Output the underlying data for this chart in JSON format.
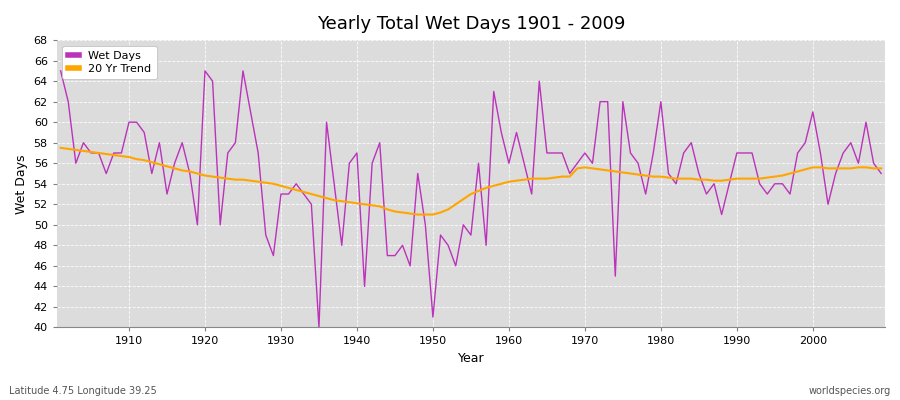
{
  "title": "Yearly Total Wet Days 1901 - 2009",
  "xlabel": "Year",
  "ylabel": "Wet Days",
  "lat_lon_label": "Latitude 4.75 Longitude 39.25",
  "watermark": "worldspecies.org",
  "ylim": [
    40,
    68
  ],
  "xlim": [
    1901,
    2009
  ],
  "wet_days_color": "#BB33BB",
  "trend_color": "#FFA500",
  "background_color": "#DCDCDC",
  "years": [
    1901,
    1902,
    1903,
    1904,
    1905,
    1906,
    1907,
    1908,
    1909,
    1910,
    1911,
    1912,
    1913,
    1914,
    1915,
    1916,
    1917,
    1918,
    1919,
    1920,
    1921,
    1922,
    1923,
    1924,
    1925,
    1926,
    1927,
    1928,
    1929,
    1930,
    1931,
    1932,
    1933,
    1934,
    1935,
    1936,
    1937,
    1938,
    1939,
    1940,
    1941,
    1942,
    1943,
    1944,
    1945,
    1946,
    1947,
    1948,
    1949,
    1950,
    1951,
    1952,
    1953,
    1954,
    1955,
    1956,
    1957,
    1958,
    1959,
    1960,
    1961,
    1962,
    1963,
    1964,
    1965,
    1966,
    1967,
    1968,
    1969,
    1970,
    1971,
    1972,
    1973,
    1974,
    1975,
    1976,
    1977,
    1978,
    1979,
    1980,
    1981,
    1982,
    1983,
    1984,
    1985,
    1986,
    1987,
    1988,
    1989,
    1990,
    1991,
    1992,
    1993,
    1994,
    1995,
    1996,
    1997,
    1998,
    1999,
    2000,
    2001,
    2002,
    2003,
    2004,
    2005,
    2006,
    2007,
    2008,
    2009
  ],
  "wet_days": [
    65,
    62,
    56,
    58,
    57,
    57,
    55,
    57,
    57,
    60,
    60,
    59,
    55,
    58,
    53,
    56,
    58,
    55,
    50,
    65,
    64,
    50,
    57,
    58,
    65,
    61,
    57,
    49,
    47,
    53,
    53,
    54,
    53,
    52,
    40,
    60,
    54,
    48,
    56,
    57,
    44,
    56,
    58,
    47,
    47,
    48,
    46,
    55,
    50,
    41,
    49,
    48,
    46,
    50,
    49,
    56,
    48,
    63,
    59,
    56,
    59,
    56,
    53,
    64,
    57,
    57,
    57,
    55,
    56,
    57,
    56,
    62,
    62,
    45,
    62,
    57,
    56,
    53,
    57,
    62,
    55,
    54,
    57,
    58,
    55,
    53,
    54,
    51,
    54,
    57,
    57,
    57,
    54,
    53,
    54,
    54,
    53,
    57,
    58,
    61,
    57,
    52,
    55,
    57,
    58,
    56,
    60,
    56,
    55
  ],
  "trend": [
    57.5,
    57.4,
    57.3,
    57.2,
    57.1,
    57.0,
    56.9,
    56.8,
    56.7,
    56.6,
    56.4,
    56.3,
    56.1,
    55.9,
    55.7,
    55.5,
    55.3,
    55.2,
    55.0,
    54.8,
    54.7,
    54.6,
    54.5,
    54.4,
    54.4,
    54.3,
    54.2,
    54.1,
    54.0,
    53.8,
    53.6,
    53.4,
    53.2,
    53.0,
    52.8,
    52.6,
    52.4,
    52.3,
    52.2,
    52.1,
    52.0,
    51.9,
    51.8,
    51.5,
    51.3,
    51.2,
    51.1,
    51.0,
    51.0,
    51.0,
    51.2,
    51.5,
    52.0,
    52.5,
    53.0,
    53.3,
    53.6,
    53.8,
    54.0,
    54.2,
    54.3,
    54.4,
    54.5,
    54.5,
    54.5,
    54.6,
    54.7,
    54.7,
    55.5,
    55.6,
    55.5,
    55.4,
    55.3,
    55.2,
    55.1,
    55.0,
    54.9,
    54.8,
    54.7,
    54.7,
    54.6,
    54.5,
    54.5,
    54.5,
    54.4,
    54.4,
    54.3,
    54.3,
    54.4,
    54.5,
    54.5,
    54.5,
    54.5,
    54.6,
    54.7,
    54.8,
    55.0,
    55.2,
    55.4,
    55.6,
    55.6,
    55.5,
    55.5,
    55.5,
    55.5,
    55.6,
    55.6,
    55.5,
    55.5
  ]
}
